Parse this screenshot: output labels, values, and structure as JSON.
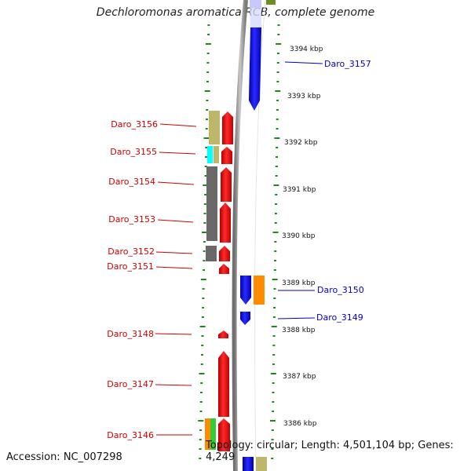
{
  "title": "Dechloromonas aromatica RCB, complete genome",
  "footer": {
    "accession": "Accession: NC_007298",
    "summary": "Topology: circular; Length: 4,501,104 bp; Genes: 4,249"
  },
  "colors": {
    "forward_label": "#cc0000",
    "reverse_label": "#0000cc",
    "tick": "#1a8a1a",
    "backbone": "#909090",
    "red_cds": "#ff0000",
    "blue_cds": "#0000ff",
    "olive_cog": "#bdb76b",
    "cyan_cog": "#00ffff",
    "gray_cog": "#696969",
    "orange_cog": "#ff8c00",
    "green_cog": "#32cd32"
  },
  "scale": {
    "labels": [
      "3394 kbp",
      "3393 kbp",
      "3392 kbp",
      "3391 kbp",
      "3390 kbp",
      "3389 kbp",
      "3388 kbp",
      "3387 kbp",
      "3386 kbp"
    ]
  },
  "genes": [
    {
      "name": "Daro_3157",
      "strand": "reverse"
    },
    {
      "name": "Daro_3156",
      "strand": "forward"
    },
    {
      "name": "Daro_3155",
      "strand": "forward"
    },
    {
      "name": "Daro_3154",
      "strand": "forward"
    },
    {
      "name": "Daro_3153",
      "strand": "forward"
    },
    {
      "name": "Daro_3152",
      "strand": "forward"
    },
    {
      "name": "Daro_3151",
      "strand": "forward"
    },
    {
      "name": "Daro_3150",
      "strand": "reverse"
    },
    {
      "name": "Daro_3149",
      "strand": "reverse"
    },
    {
      "name": "Daro_3148",
      "strand": "forward"
    },
    {
      "name": "Daro_3147",
      "strand": "forward"
    },
    {
      "name": "Daro_3146",
      "strand": "forward"
    }
  ]
}
